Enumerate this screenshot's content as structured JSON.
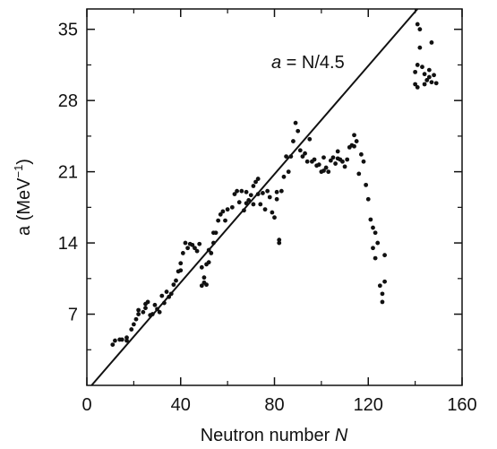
{
  "chart_data": {
    "type": "scatter",
    "xlabel": {
      "prefix": "Neutron number ",
      "var": "N"
    },
    "ylabel": {
      "prefix": "a (MeV",
      "sup": "−1",
      "suffix": ")"
    },
    "xlim": [
      0,
      160
    ],
    "ylim": [
      0,
      37
    ],
    "xticks": [
      0,
      40,
      80,
      120,
      160
    ],
    "yticks": [
      7,
      14,
      21,
      28,
      35
    ],
    "xticklabels": [
      "0",
      "40",
      "80",
      "120",
      "160"
    ],
    "yticklabels": [
      "7",
      "14",
      "21",
      "28",
      "35"
    ],
    "grid": false,
    "annotation": {
      "var": "a",
      "rest": " = N/4.5"
    },
    "line": {
      "label": "a = N/4.5",
      "slope": 0.2222,
      "intercept": 0,
      "x_start": 2,
      "x_end": 141
    },
    "points": [
      [
        11,
        4.0
      ],
      [
        12,
        4.4
      ],
      [
        14,
        4.5
      ],
      [
        15,
        4.5
      ],
      [
        17,
        4.7
      ],
      [
        17,
        4.4
      ],
      [
        19,
        5.5
      ],
      [
        20,
        6.0
      ],
      [
        21,
        6.5
      ],
      [
        22,
        7.0
      ],
      [
        22,
        7.4
      ],
      [
        24,
        7.2
      ],
      [
        25,
        8.0
      ],
      [
        25,
        7.6
      ],
      [
        26,
        8.2
      ],
      [
        27,
        6.9
      ],
      [
        28,
        7.0
      ],
      [
        29,
        7.9
      ],
      [
        30,
        7.5
      ],
      [
        31,
        7.2
      ],
      [
        32,
        8.8
      ],
      [
        33,
        8.1
      ],
      [
        34,
        9.2
      ],
      [
        35,
        8.7
      ],
      [
        36,
        9.0
      ],
      [
        37,
        9.9
      ],
      [
        38,
        10.3
      ],
      [
        39,
        11.2
      ],
      [
        40,
        12.0
      ],
      [
        40,
        11.3
      ],
      [
        41,
        13.0
      ],
      [
        42,
        14.0
      ],
      [
        43,
        13.5
      ],
      [
        44,
        13.9
      ],
      [
        45,
        13.8
      ],
      [
        46,
        13.5
      ],
      [
        47,
        13.2
      ],
      [
        48,
        13.9
      ],
      [
        49,
        11.6
      ],
      [
        49,
        9.8
      ],
      [
        50,
        10.1
      ],
      [
        50,
        10.6
      ],
      [
        51,
        9.9
      ],
      [
        51,
        11.9
      ],
      [
        52,
        12.1
      ],
      [
        52,
        13.3
      ],
      [
        53,
        13.0
      ],
      [
        54,
        14.0
      ],
      [
        54,
        15.0
      ],
      [
        55,
        15.0
      ],
      [
        56,
        16.2
      ],
      [
        57,
        16.8
      ],
      [
        58,
        17.1
      ],
      [
        59,
        16.2
      ],
      [
        60,
        17.3
      ],
      [
        62,
        17.5
      ],
      [
        63,
        18.8
      ],
      [
        64,
        19.1
      ],
      [
        65,
        18.0
      ],
      [
        66,
        19.1
      ],
      [
        67,
        17.2
      ],
      [
        68,
        17.9
      ],
      [
        68,
        19.0
      ],
      [
        69,
        18.2
      ],
      [
        70,
        18.7
      ],
      [
        71,
        17.8
      ],
      [
        71,
        19.6
      ],
      [
        72,
        20.0
      ],
      [
        73,
        18.8
      ],
      [
        73,
        20.3
      ],
      [
        74,
        17.8
      ],
      [
        75,
        18.9
      ],
      [
        76,
        17.3
      ],
      [
        77,
        19.1
      ],
      [
        78,
        18.5
      ],
      [
        79,
        17.0
      ],
      [
        80,
        16.5
      ],
      [
        81,
        19.0
      ],
      [
        81,
        18.3
      ],
      [
        82,
        14.3
      ],
      [
        82,
        14.0
      ],
      [
        83,
        19.1
      ],
      [
        84,
        20.5
      ],
      [
        85,
        22.5
      ],
      [
        86,
        21.0
      ],
      [
        87,
        22.5
      ],
      [
        88,
        24.0
      ],
      [
        89,
        25.8
      ],
      [
        90,
        25.0
      ],
      [
        91,
        23.1
      ],
      [
        92,
        22.5
      ],
      [
        93,
        22.8
      ],
      [
        94,
        22.0
      ],
      [
        95,
        24.2
      ],
      [
        96,
        22.0
      ],
      [
        97,
        22.2
      ],
      [
        98,
        21.6
      ],
      [
        99,
        21.7
      ],
      [
        100,
        21.0
      ],
      [
        101,
        22.4
      ],
      [
        101,
        21.1
      ],
      [
        102,
        21.4
      ],
      [
        103,
        21.0
      ],
      [
        104,
        22.1
      ],
      [
        105,
        22.4
      ],
      [
        106,
        21.8
      ],
      [
        107,
        22.3
      ],
      [
        107,
        23.0
      ],
      [
        108,
        22.2
      ],
      [
        109,
        22.0
      ],
      [
        110,
        21.5
      ],
      [
        111,
        22.2
      ],
      [
        112,
        23.4
      ],
      [
        113,
        23.6
      ],
      [
        114,
        23.5
      ],
      [
        114,
        24.6
      ],
      [
        115,
        24.0
      ],
      [
        116,
        20.8
      ],
      [
        117,
        22.7
      ],
      [
        118,
        22.0
      ],
      [
        119,
        19.7
      ],
      [
        120,
        18.3
      ],
      [
        121,
        16.3
      ],
      [
        122,
        15.5
      ],
      [
        122,
        13.5
      ],
      [
        123,
        15.0
      ],
      [
        123,
        12.5
      ],
      [
        124,
        14.0
      ],
      [
        125,
        9.8
      ],
      [
        126,
        9.0
      ],
      [
        126,
        8.2
      ],
      [
        127,
        10.2
      ],
      [
        127,
        12.8
      ],
      [
        140,
        30.8
      ],
      [
        140,
        29.6
      ],
      [
        141,
        29.3
      ],
      [
        141,
        35.5
      ],
      [
        141,
        31.5
      ],
      [
        142,
        35.0
      ],
      [
        142,
        33.2
      ],
      [
        143,
        31.3
      ],
      [
        144,
        29.6
      ],
      [
        144,
        30.6
      ],
      [
        145,
        30.0
      ],
      [
        146,
        30.3
      ],
      [
        146,
        31.0
      ],
      [
        147,
        33.7
      ],
      [
        147,
        29.8
      ],
      [
        148,
        30.5
      ],
      [
        149,
        29.7
      ]
    ]
  }
}
